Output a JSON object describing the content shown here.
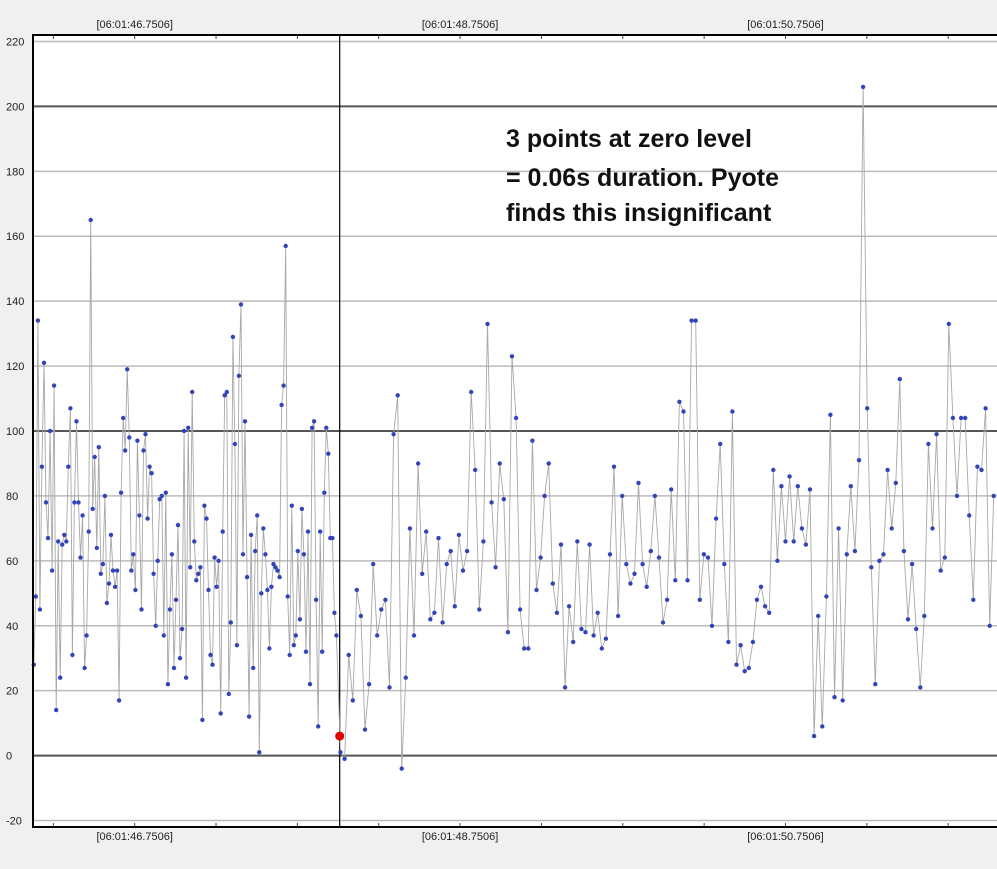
{
  "chart_data": {
    "type": "scatter",
    "title": "",
    "xlabel": "",
    "ylabel": "",
    "ylim": [
      -22,
      222
    ],
    "xlim": [
      -0.625,
      5.3
    ],
    "grid": true,
    "y_ticks": [
      220,
      200,
      180,
      160,
      140,
      120,
      100,
      80,
      60,
      40,
      20,
      0,
      -20
    ],
    "y_tick_labels": [
      "220",
      "200",
      "180",
      "160",
      "140",
      "120",
      "100",
      "80",
      "60",
      "40",
      "20",
      "0",
      "-20"
    ],
    "x_ticks": [
      0,
      2,
      4
    ],
    "x_tick_labels": [
      "[06:01:46.7506]",
      "[06:01:48.7506]",
      "[06:01:50.7506]"
    ],
    "cursor_x": 1.26,
    "annotation": {
      "lines": [
        "3 points at zero level",
        "= 0.06s duration. Pyote",
        "finds this insignificant"
      ]
    },
    "highlight": {
      "x": 1.26,
      "y": 6,
      "color": "#e00000"
    },
    "colors": {
      "points": "#3344bb",
      "line": "#a8a8a8",
      "grid": "#bbbbbb",
      "grid_major": "#555555",
      "axis": "#000000",
      "background": "#ffffff"
    },
    "series": [
      {
        "values": [
          28,
          49,
          134,
          45,
          89,
          121,
          78,
          67,
          100,
          57,
          114,
          14,
          66,
          24,
          65,
          68,
          66,
          89,
          107,
          31,
          78,
          103,
          78,
          61,
          74,
          27,
          37,
          69,
          165,
          76,
          92,
          64,
          95,
          56,
          59,
          80,
          47,
          53,
          68,
          57,
          52,
          57,
          17,
          81,
          104,
          94,
          119,
          98,
          57,
          62,
          51,
          97,
          74,
          45,
          94,
          99,
          73,
          89,
          87,
          56,
          40,
          60,
          79,
          80,
          37,
          81,
          22,
          45,
          62,
          27,
          48,
          71,
          30,
          39,
          100,
          24,
          101,
          58,
          112,
          66,
          54,
          56,
          58,
          11,
          77,
          73,
          51,
          31,
          28,
          61,
          52,
          60,
          13,
          69,
          111,
          112,
          19,
          41,
          129,
          96,
          34,
          117,
          139,
          62,
          103,
          55,
          12,
          68,
          27,
          63,
          74,
          1,
          50,
          70,
          62,
          51,
          33,
          52,
          59,
          58,
          57,
          55,
          108,
          114,
          157,
          49,
          31,
          77,
          34,
          37,
          63,
          42,
          76,
          62,
          32,
          69,
          22,
          101,
          103,
          48,
          9,
          69,
          32,
          81,
          101,
          93,
          67,
          67,
          44,
          37
        ],
        "values2": [
          1,
          -1,
          31,
          17,
          51,
          43,
          8,
          22,
          59,
          37,
          45,
          48,
          21,
          99,
          111,
          -4,
          24,
          70,
          37,
          90,
          56,
          69,
          42,
          44,
          67,
          41,
          59,
          63,
          46,
          68,
          57,
          63,
          112,
          88,
          45,
          66,
          133,
          78,
          58,
          90,
          79,
          38,
          123,
          104,
          45,
          33,
          33,
          97,
          51,
          61,
          80,
          90,
          53,
          44,
          65,
          21,
          46,
          35,
          66,
          39,
          38,
          65,
          37,
          44,
          33,
          36,
          62,
          89,
          43,
          80,
          59,
          53,
          56,
          84,
          59,
          52,
          63,
          80,
          61,
          41,
          48,
          82,
          54,
          109,
          106,
          54,
          134,
          134,
          48,
          62,
          61,
          40,
          73,
          96,
          59,
          35,
          106,
          28,
          34,
          26,
          27,
          35,
          48,
          52,
          46,
          44,
          88,
          60,
          83,
          66,
          86,
          66,
          83,
          70,
          65,
          82,
          6,
          43,
          9,
          49,
          105,
          18,
          70,
          17,
          62,
          83,
          63,
          91,
          206,
          107,
          58,
          22,
          60,
          62,
          88,
          70,
          84,
          116,
          63,
          42,
          59,
          39,
          21,
          43,
          96,
          70,
          99,
          57,
          61,
          133,
          104,
          80,
          104,
          104,
          74,
          48,
          89,
          88,
          107,
          40,
          80
        ]
      }
    ]
  }
}
